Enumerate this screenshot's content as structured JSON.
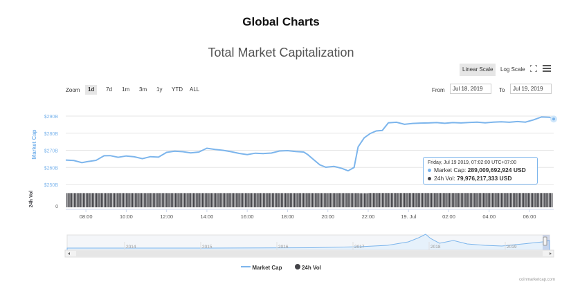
{
  "page_title": "Global Charts",
  "chart_title": "Total Market Capitalization",
  "scale": {
    "linear": "Linear Scale",
    "log": "Log Scale",
    "active": "linear"
  },
  "zoom": {
    "label": "Zoom",
    "options": [
      "1d",
      "7d",
      "1m",
      "3m",
      "1y",
      "YTD",
      "ALL"
    ],
    "active": "1d"
  },
  "range": {
    "from_label": "From",
    "from_value": "Jul 18, 2019",
    "to_label": "To",
    "to_value": "Jul 19, 2019"
  },
  "tooltip": {
    "date": "Friday, Jul 19 2019, 07:02:00 UTC+07:00",
    "marketcap_label": "Market Cap:",
    "marketcap_value": "289,009,692,924 USD",
    "volume_label": "24h Vol:",
    "volume_value": "79,976,217,333 USD"
  },
  "legend": {
    "marketcap": "Market Cap",
    "volume": "24h Vol"
  },
  "credits": "coinmarketcap.com",
  "colors": {
    "marketcap": "#7cb5ec",
    "volume": "#434348",
    "navigator": "#7cb5ec"
  },
  "chart_data": {
    "type": "line",
    "ylabel": "Market Cap",
    "volume_axis_label": "24h Vol",
    "volume_axis_ticks": [
      "0"
    ],
    "y_ticks": [
      "$250B",
      "$260B",
      "$270B",
      "$280B",
      "$290B"
    ],
    "ylim_billion": [
      250,
      290
    ],
    "x_tick_labels": [
      "08:00",
      "10:00",
      "12:00",
      "14:00",
      "16:00",
      "18:00",
      "20:00",
      "22:00",
      "19. Jul",
      "02:00",
      "04:00",
      "06:00"
    ],
    "x_range_hours": [
      7.0,
      31.2
    ],
    "x_ticks_hours": [
      8,
      10,
      12,
      14,
      16,
      18,
      20,
      22,
      24,
      26,
      28,
      30
    ],
    "series": [
      {
        "name": "Market Cap",
        "unit": "billion USD",
        "x_hours": [
          7.0,
          7.4,
          7.8,
          8.1,
          8.5,
          8.9,
          9.2,
          9.6,
          10.0,
          10.4,
          10.8,
          11.2,
          11.6,
          12.0,
          12.4,
          12.8,
          13.2,
          13.6,
          14.0,
          14.4,
          14.8,
          15.2,
          15.6,
          16.0,
          16.4,
          16.8,
          17.2,
          17.6,
          18.0,
          18.4,
          18.8,
          19.0,
          19.3,
          19.6,
          19.9,
          20.3,
          20.7,
          21.0,
          21.3,
          21.5,
          21.8,
          22.1,
          22.4,
          22.7,
          23.0,
          23.4,
          23.8,
          24.2,
          24.6,
          25.0,
          25.4,
          25.8,
          26.2,
          26.6,
          27.0,
          27.4,
          27.8,
          28.2,
          28.6,
          29.0,
          29.4,
          29.8,
          30.2,
          30.6,
          31.0,
          31.2
        ],
        "values": [
          264.3,
          264.0,
          262.8,
          263.4,
          264.1,
          266.8,
          266.9,
          265.9,
          266.7,
          266.2,
          265.1,
          266.3,
          266.0,
          268.8,
          269.5,
          269.2,
          268.5,
          269.0,
          271.2,
          270.5,
          270.0,
          269.2,
          268.2,
          267.5,
          268.3,
          268.1,
          268.4,
          269.6,
          269.8,
          269.3,
          269.0,
          267.5,
          264.5,
          261.5,
          260.1,
          260.6,
          259.4,
          258.0,
          260.0,
          272.0,
          277.3,
          279.8,
          281.3,
          281.6,
          286.1,
          286.4,
          285.2,
          285.7,
          285.9,
          286.0,
          286.2,
          285.8,
          286.2,
          286.0,
          286.3,
          286.5,
          286.1,
          286.5,
          286.7,
          286.4,
          286.8,
          286.5,
          287.8,
          289.5,
          289.3,
          288.3
        ]
      },
      {
        "name": "24h Vol",
        "unit": "billion USD",
        "x_hours": [
          7.0,
          21.5,
          22.0,
          31.2
        ],
        "values": [
          79.5,
          79.0,
          80.0,
          80.0
        ]
      }
    ],
    "navigator": {
      "x_labels": [
        "2014",
        "2015",
        "2016",
        "2017",
        "2018",
        "2019"
      ]
    }
  }
}
